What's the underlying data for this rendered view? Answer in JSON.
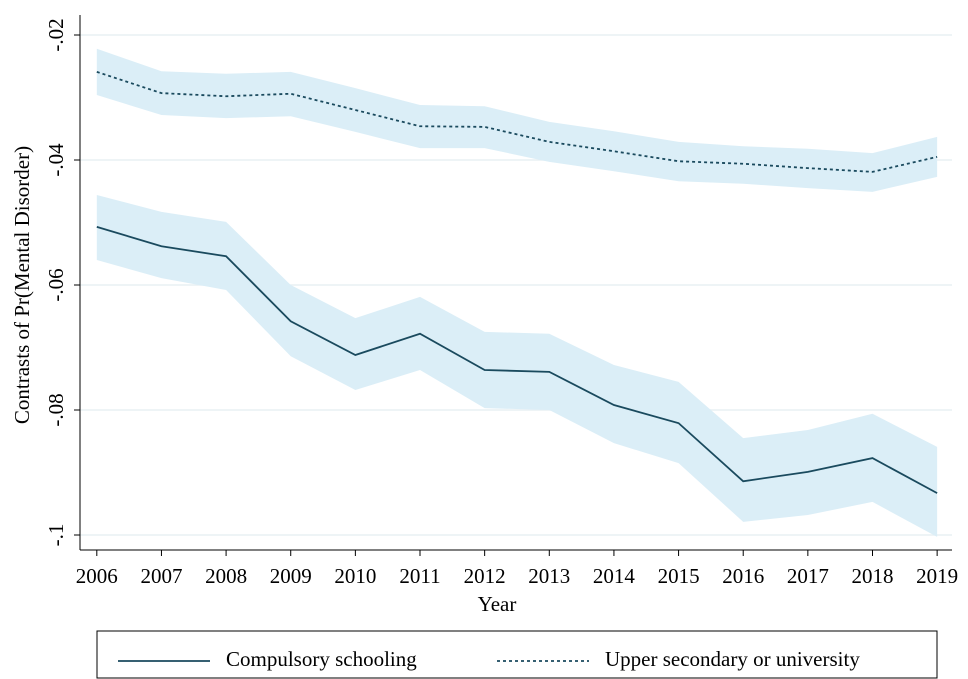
{
  "chart_data": {
    "type": "line",
    "x_label": "Year",
    "y_label": "Contrasts of Pr(Mental Disorder)",
    "x": [
      2006,
      2007,
      2008,
      2009,
      2010,
      2011,
      2012,
      2013,
      2014,
      2015,
      2016,
      2017,
      2018,
      2019
    ],
    "xlim": [
      2005.74,
      2019.23
    ],
    "xticks": [
      2006,
      2007,
      2008,
      2009,
      2010,
      2011,
      2012,
      2013,
      2014,
      2015,
      2016,
      2017,
      2018,
      2019
    ],
    "ylim": [
      -0.1024,
      -0.0168
    ],
    "yticks": [
      {
        "value": -0.1,
        "label": "-.1"
      },
      {
        "value": -0.08,
        "label": "-.08"
      },
      {
        "value": -0.06,
        "label": "-.06"
      },
      {
        "value": -0.04,
        "label": "-.04"
      },
      {
        "value": -0.02,
        "label": "-.02"
      }
    ],
    "grid": true,
    "band_color": "#dbeef7",
    "series": [
      {
        "name": "Compulsory schooling",
        "color": "#1a4a5e",
        "dash": "solid",
        "values": [
          -0.0507,
          -0.0538,
          -0.0554,
          -0.0658,
          -0.0712,
          -0.0678,
          -0.0736,
          -0.0739,
          -0.0792,
          -0.0821,
          -0.0914,
          -0.0899,
          -0.0877,
          -0.0933
        ],
        "upper": [
          -0.0456,
          -0.0483,
          -0.0499,
          -0.06,
          -0.0653,
          -0.0619,
          -0.0675,
          -0.0678,
          -0.0728,
          -0.0755,
          -0.0845,
          -0.0832,
          -0.0806,
          -0.0859
        ],
        "lower": [
          -0.056,
          -0.0589,
          -0.0608,
          -0.0714,
          -0.0768,
          -0.0736,
          -0.0797,
          -0.08,
          -0.0853,
          -0.0885,
          -0.0979,
          -0.0968,
          -0.0947,
          -0.1003
        ]
      },
      {
        "name": "Upper secondary or university",
        "color": "#1a4a5e",
        "dash": "dotted",
        "values": [
          -0.0259,
          -0.0293,
          -0.0298,
          -0.0294,
          -0.032,
          -0.0346,
          -0.0347,
          -0.0371,
          -0.0386,
          -0.0402,
          -0.0406,
          -0.0413,
          -0.0419,
          -0.0395
        ],
        "upper": [
          -0.0222,
          -0.0258,
          -0.0262,
          -0.0259,
          -0.0285,
          -0.0312,
          -0.0314,
          -0.0339,
          -0.0354,
          -0.0371,
          -0.0378,
          -0.0382,
          -0.0389,
          -0.0363
        ],
        "lower": [
          -0.0296,
          -0.0328,
          -0.0333,
          -0.033,
          -0.0355,
          -0.0381,
          -0.0381,
          -0.0403,
          -0.0418,
          -0.0434,
          -0.0438,
          -0.0445,
          -0.0451,
          -0.0427
        ]
      }
    ]
  }
}
